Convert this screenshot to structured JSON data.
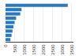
{
  "chart_data": {
    "type": "bar",
    "orientation": "horizontal",
    "categories": [
      null,
      null,
      null,
      null,
      null,
      null,
      null,
      null,
      null
    ],
    "values": [
      3300,
      850,
      780,
      560,
      480,
      420,
      370,
      320,
      260
    ],
    "color": "#2878c8",
    "xlim": [
      0,
      3600
    ],
    "xticks": [
      0,
      500,
      1000,
      1500,
      2000,
      2500,
      3000,
      3500
    ],
    "grid": true,
    "tick_labels": "x"
  }
}
